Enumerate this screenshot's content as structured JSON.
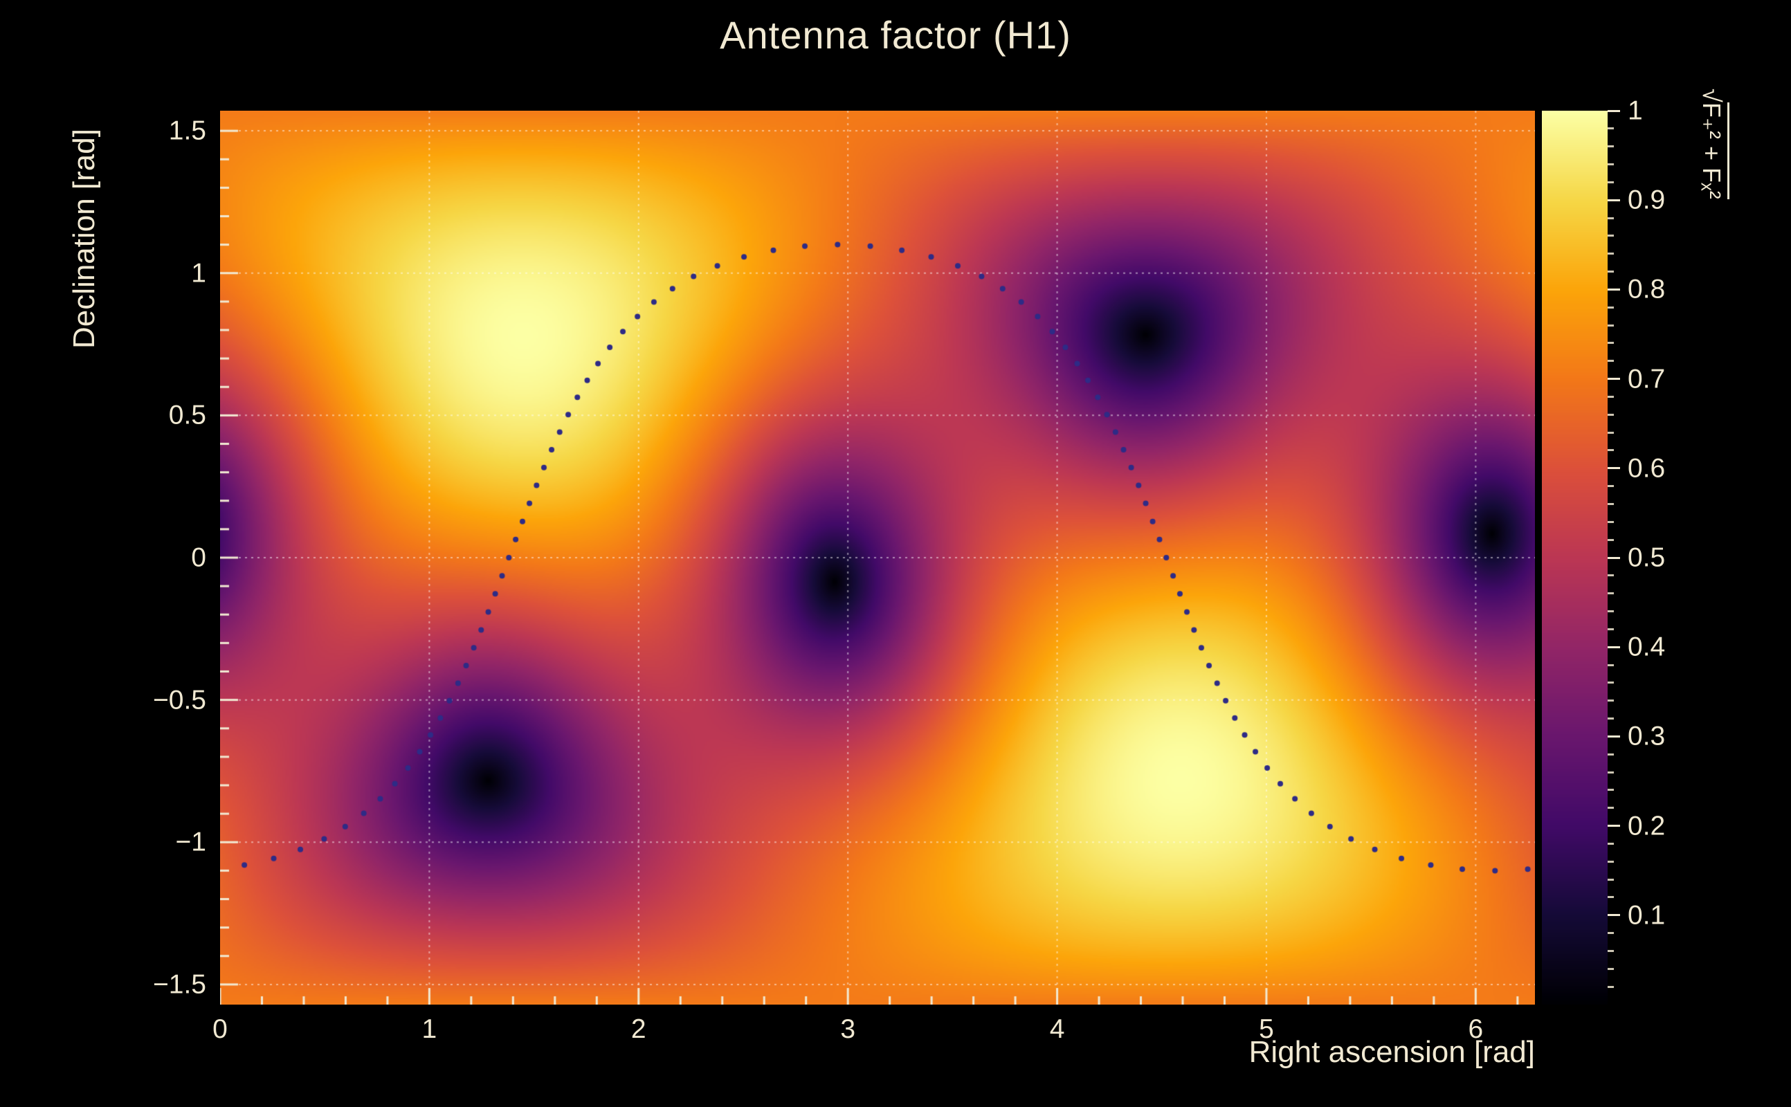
{
  "page": {
    "background": "#000000",
    "text_color": "#f1e9d2",
    "grid_color": "rgba(255,255,255,0.5)"
  },
  "chart_data": {
    "type": "heatmap",
    "title": "Antenna factor (H1)",
    "xlabel": "Right ascension [rad]",
    "ylabel": "Declination [rad]",
    "zlabel": "√F₊² + Fₓ²",
    "x_range": [
      0,
      6.2832
    ],
    "y_range": [
      -1.5708,
      1.5708
    ],
    "z_range": [
      0,
      1
    ],
    "grid": true,
    "x_ticks": [
      {
        "v": 0,
        "label": "0"
      },
      {
        "v": 1,
        "label": "1"
      },
      {
        "v": 2,
        "label": "2"
      },
      {
        "v": 3,
        "label": "3"
      },
      {
        "v": 4,
        "label": "4"
      },
      {
        "v": 5,
        "label": "5"
      },
      {
        "v": 6,
        "label": "6"
      }
    ],
    "y_ticks": [
      {
        "v": 1.5,
        "label": "1.5"
      },
      {
        "v": 1.0,
        "label": "1"
      },
      {
        "v": 0.5,
        "label": "0.5"
      },
      {
        "v": 0.0,
        "label": "0"
      },
      {
        "v": -0.5,
        "label": "−0.5"
      },
      {
        "v": -1.0,
        "label": "−1"
      },
      {
        "v": -1.5,
        "label": "−1.5"
      }
    ],
    "colorbar_ticks": [
      {
        "v": 1.0,
        "label": "1"
      },
      {
        "v": 0.9,
        "label": "0.9"
      },
      {
        "v": 0.8,
        "label": "0.8"
      },
      {
        "v": 0.7,
        "label": "0.7"
      },
      {
        "v": 0.6,
        "label": "0.6"
      },
      {
        "v": 0.5,
        "label": "0.5"
      },
      {
        "v": 0.4,
        "label": "0.4"
      },
      {
        "v": 0.3,
        "label": "0.3"
      },
      {
        "v": 0.2,
        "label": "0.2"
      },
      {
        "v": 0.1,
        "label": "0.1"
      }
    ],
    "x_minor_step": 0.2,
    "y_minor_step": 0.1,
    "cbar_minor_step": 0.02,
    "colormap": {
      "name": "inferno",
      "stops": [
        [
          0.0,
          0,
          0,
          4
        ],
        [
          0.1,
          22,
          11,
          57
        ],
        [
          0.2,
          66,
          10,
          104
        ],
        [
          0.3,
          106,
          23,
          110
        ],
        [
          0.4,
          147,
          38,
          103
        ],
        [
          0.5,
          188,
          55,
          84
        ],
        [
          0.6,
          221,
          81,
          58
        ],
        [
          0.7,
          243,
          120,
          25
        ],
        [
          0.8,
          252,
          165,
          10
        ],
        [
          0.9,
          246,
          215,
          70
        ],
        [
          1.0,
          252,
          255,
          164
        ]
      ]
    },
    "field": {
      "model": "rms antenna pattern sqrt(Fplus^2 + Fcross^2) of an L-shaped interferometer",
      "zenith_ra": 1.45,
      "zenith_dec": 0.78,
      "azimuth_offset_rad": -0.905,
      "maxima_radec": [
        [
          1.45,
          0.78
        ],
        [
          4.59,
          -0.78
        ]
      ],
      "minima_radec": [
        [
          1.3,
          -0.73
        ],
        [
          2.95,
          -0.1
        ],
        [
          4.4,
          0.75
        ],
        [
          6.19,
          0.1
        ]
      ]
    },
    "track": {
      "style": "dotted",
      "color": "#2e2b86",
      "model": "inclined great circle sampled uniformly in phase",
      "inclination_rad": 1.1,
      "ra_phase_rad": 1.38,
      "n_points": 88,
      "dot_radius_px": 4
    }
  }
}
